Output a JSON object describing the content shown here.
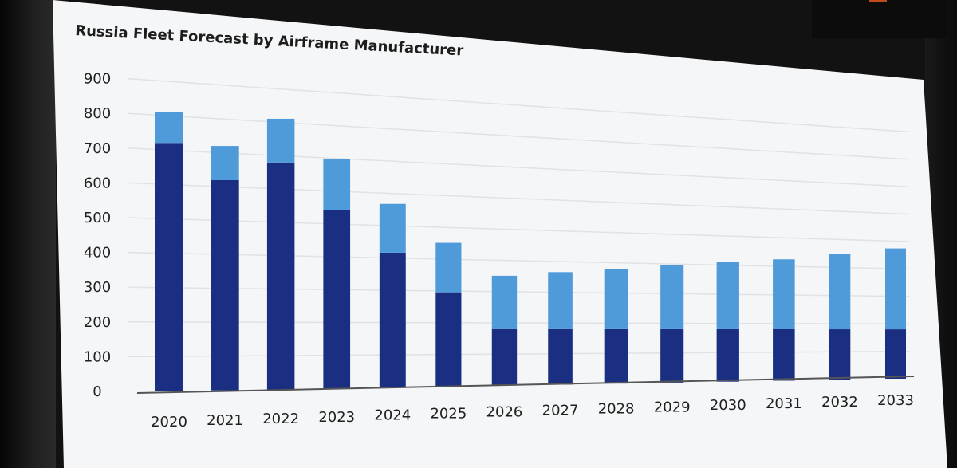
{
  "chart_data": {
    "type": "bar",
    "stacked": true,
    "title": "Russia Fleet Forecast by Airframe Manufacturer",
    "categories": [
      "2020",
      "2021",
      "2022",
      "2023",
      "2024",
      "2025",
      "2026",
      "2027",
      "2028",
      "2029",
      "2030",
      "2031",
      "2032",
      "2033"
    ],
    "series": [
      {
        "color": "#1b2f82",
        "values": [
          715,
          615,
          675,
          540,
          415,
          295,
          180,
          180,
          180,
          180,
          180,
          180,
          180,
          180
        ]
      },
      {
        "color": "#4f9ad9",
        "values": [
          90,
          100,
          130,
          155,
          150,
          155,
          170,
          185,
          200,
          215,
          230,
          245,
          270,
          295
        ]
      }
    ],
    "ylim": [
      0,
      900
    ],
    "yticks": [
      0,
      100,
      200,
      300,
      400,
      500,
      600,
      700,
      800,
      900
    ],
    "grid": true,
    "legend": "none"
  }
}
